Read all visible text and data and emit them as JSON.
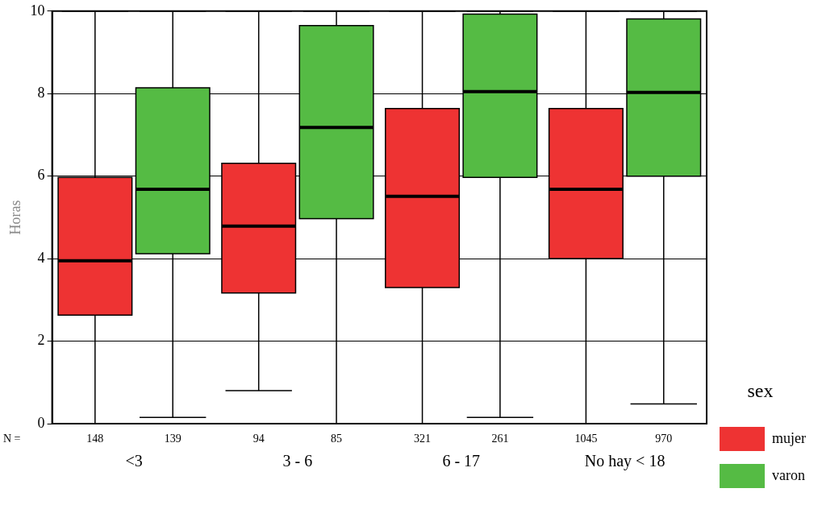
{
  "chart_data": {
    "type": "box",
    "ylabel": "Horas",
    "legend_title": "sex",
    "categories": [
      "<3",
      "3 - 6",
      "6 - 17",
      "No hay < 18"
    ],
    "series": [
      {
        "name": "mujer",
        "color": "#ee3333",
        "boxes": [
          {
            "low": 0,
            "q1": 2.63,
            "median": 3.95,
            "q3": 5.97,
            "high": 10
          },
          {
            "low": 0.8,
            "q1": 3.17,
            "median": 4.79,
            "q3": 6.31,
            "high": 10
          },
          {
            "low": 0,
            "q1": 3.3,
            "median": 5.51,
            "q3": 7.64,
            "high": 10
          },
          {
            "low": 0,
            "q1": 4,
            "median": 5.68,
            "q3": 7.64,
            "high": 10
          }
        ]
      },
      {
        "name": "varon",
        "color": "#55bb44",
        "boxes": [
          {
            "low": 0.15,
            "q1": 4.12,
            "median": 5.68,
            "q3": 8.14,
            "high": 10
          },
          {
            "low": 0,
            "q1": 4.97,
            "median": 7.18,
            "q3": 9.65,
            "high": 10
          },
          {
            "low": 0.15,
            "q1": 5.97,
            "median": 8.05,
            "q3": 9.93,
            "high": 10
          },
          {
            "low": 0.48,
            "q1": 6,
            "median": 8.03,
            "q3": 9.81,
            "high": 10
          }
        ]
      }
    ],
    "ylim": [
      0,
      10
    ],
    "yticks": [
      0,
      2,
      4,
      6,
      8,
      10
    ],
    "grid": "y",
    "legend": "right",
    "annotations": [
      "N =",
      "148",
      "139",
      "94",
      "85",
      "321",
      "261",
      "1045",
      "970"
    ]
  }
}
